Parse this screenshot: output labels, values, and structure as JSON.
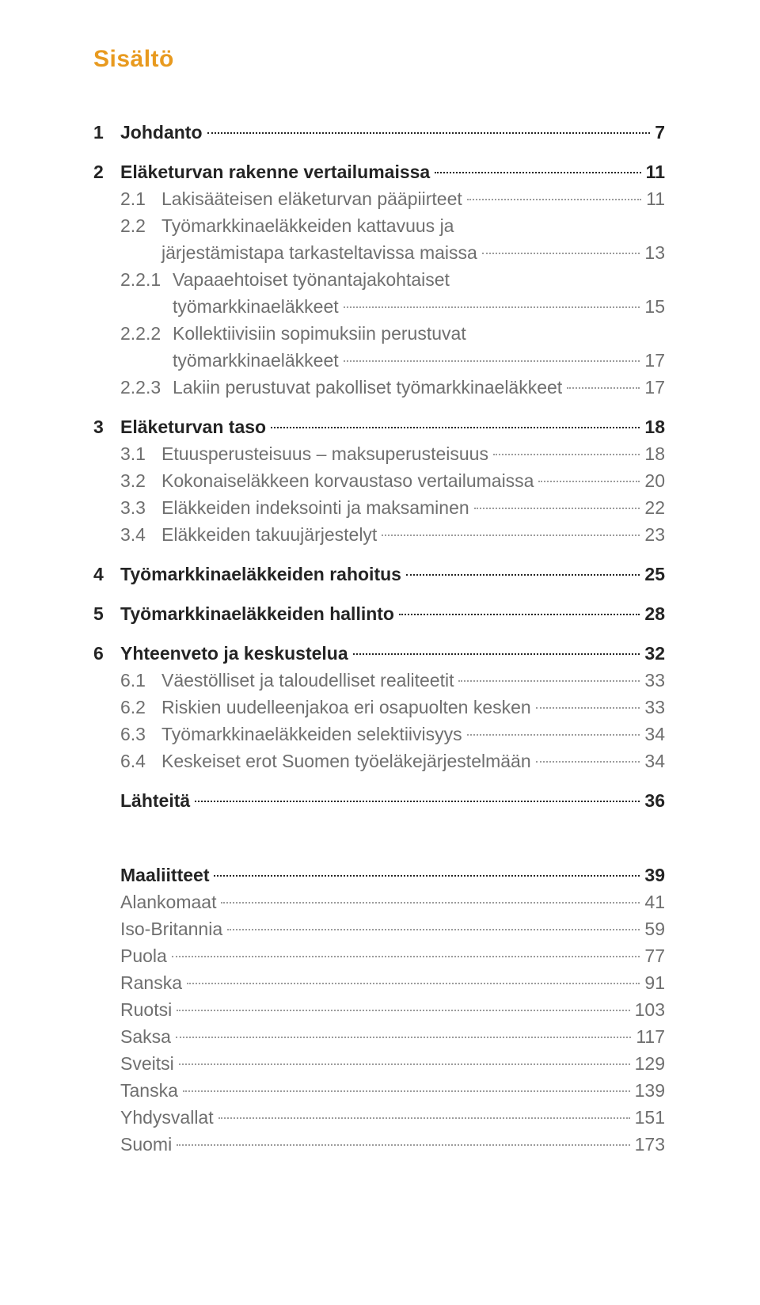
{
  "style": {
    "page_bg": "#ffffff",
    "title_color": "#e89a1f",
    "bold_text_color": "#242424",
    "bold_page_color": "#242424",
    "sub_text_color": "#6f6f6f",
    "sub_page_color": "#6f6f6f",
    "bold_dot_color": "#242424",
    "sub_dot_color": "#9c9c9c",
    "title_fontsize": 30,
    "bold_fontsize": 23,
    "sub_fontsize": 23,
    "line_height": 34,
    "chapter_num_width": 34,
    "sub_indent": 34,
    "sub_num_width": 52,
    "sub_num_width_wide": 66,
    "block_gap": 16,
    "second_block_gap": 60
  },
  "title": "Sisältö",
  "blocks": [
    {
      "gap_before": 0,
      "entries": [
        {
          "level": "chapter",
          "num": "1",
          "label": "Johdanto",
          "page": "7"
        },
        {
          "level": "chapter",
          "num": "2",
          "label": "Eläketurvan rakenne vertailumaissa",
          "page": "11"
        },
        {
          "level": "sub",
          "num": "2.1",
          "label": "Lakisääteisen eläketurvan pääpiirteet",
          "page": "11"
        },
        {
          "level": "sub",
          "num": "2.2",
          "label": "Työmarkkinaeläkkeiden kattavuus ja",
          "cont": "järjestämistapa tarkasteltavissa maissa",
          "page": "13"
        },
        {
          "level": "sub",
          "num": "2.2.1",
          "wide": true,
          "label": "Vapaaehtoiset työnantajakohtaiset",
          "cont": "työmarkkinaeläkkeet",
          "page": "15"
        },
        {
          "level": "sub",
          "num": "2.2.2",
          "wide": true,
          "label": "Kollektiivisiin sopimuksiin perustuvat",
          "cont": "työmarkkinaeläkkeet",
          "page": "17"
        },
        {
          "level": "sub",
          "num": "2.2.3",
          "wide": true,
          "label": "Lakiin perustuvat pakolliset työmarkkinaeläkkeet",
          "page": "17"
        },
        {
          "level": "chapter",
          "num": "3",
          "label": "Eläketurvan taso",
          "page": "18"
        },
        {
          "level": "sub",
          "num": "3.1",
          "label": "Etuusperusteisuus – maksuperusteisuus",
          "page": "18"
        },
        {
          "level": "sub",
          "num": "3.2",
          "label": "Kokonaiseläkkeen korvaustaso vertailumaissa",
          "page": "20"
        },
        {
          "level": "sub",
          "num": "3.3",
          "label": "Eläkkeiden indeksointi ja maksaminen",
          "page": "22"
        },
        {
          "level": "sub",
          "num": "3.4",
          "label": "Eläkkeiden takuujärjestelyt",
          "page": "23"
        },
        {
          "level": "chapter",
          "num": "4",
          "label": "Työmarkkinaeläkkeiden rahoitus",
          "page": "25"
        },
        {
          "level": "chapter",
          "num": "5",
          "label": "Työmarkkinaeläkkeiden hallinto",
          "page": "28"
        },
        {
          "level": "chapter",
          "num": "6",
          "label": "Yhteenveto ja keskustelua",
          "page": "32"
        },
        {
          "level": "sub",
          "num": "6.1",
          "label": "Väestölliset ja taloudelliset realiteetit",
          "page": "33"
        },
        {
          "level": "sub",
          "num": "6.2",
          "label": "Riskien uudelleenjakoa eri osapuolten kesken",
          "page": "33"
        },
        {
          "level": "sub",
          "num": "6.3",
          "label": "Työmarkkinaeläkkeiden selektiivisyys",
          "page": "34"
        },
        {
          "level": "sub",
          "num": "6.4",
          "label": "Keskeiset erot Suomen työeläkejärjestelmään",
          "page": "34"
        },
        {
          "level": "chapter",
          "num": "",
          "label": "Lähteitä",
          "page": "36"
        }
      ]
    },
    {
      "gap_before": 60,
      "entries": [
        {
          "level": "chapter",
          "num": "",
          "label": "Maaliitteet",
          "page": "39"
        },
        {
          "level": "subplain",
          "label": "Alankomaat",
          "page": "41"
        },
        {
          "level": "subplain",
          "label": "Iso-Britannia",
          "page": "59"
        },
        {
          "level": "subplain",
          "label": "Puola",
          "page": "77"
        },
        {
          "level": "subplain",
          "label": "Ranska",
          "page": "91"
        },
        {
          "level": "subplain",
          "label": "Ruotsi",
          "page": "103"
        },
        {
          "level": "subplain",
          "label": "Saksa",
          "page": "117"
        },
        {
          "level": "subplain",
          "label": "Sveitsi",
          "page": "129"
        },
        {
          "level": "subplain",
          "label": "Tanska",
          "page": "139"
        },
        {
          "level": "subplain",
          "label": "Yhdysvallat",
          "page": "151"
        },
        {
          "level": "subplain",
          "label": "Suomi",
          "page": "173"
        }
      ]
    }
  ]
}
